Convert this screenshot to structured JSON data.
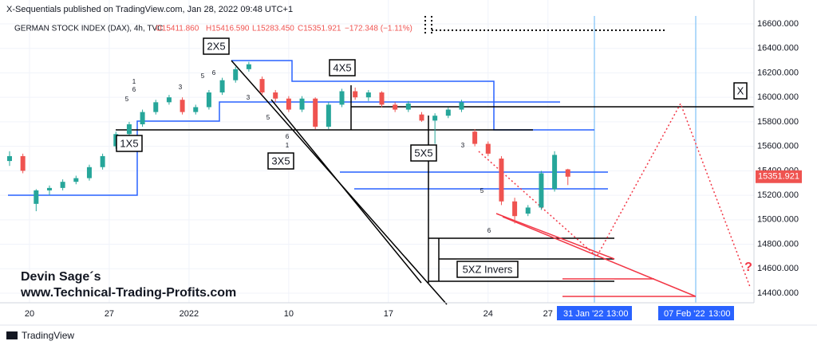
{
  "header": {
    "published": "X-Sequentials published on TradingView.com, Jan 28, 2022 09:48 UTC+1",
    "symbol": "GERMAN STOCK INDEX (DAX), 4h, TVC",
    "open": "O15411.860",
    "high": "H15416.590",
    "low": "L15283.450",
    "close": "C15351.921",
    "change": "−172.348 (−1.11%)"
  },
  "chart_data": {
    "type": "candlestick",
    "x": [
      0,
      2,
      4,
      6,
      8,
      10,
      12,
      14,
      16,
      18,
      20,
      22,
      24,
      26,
      28,
      30,
      32,
      34,
      36,
      38,
      40,
      42,
      44,
      46,
      48,
      50,
      52,
      54,
      56,
      58,
      60,
      62,
      64,
      66,
      68,
      70,
      72,
      74,
      76,
      78,
      80,
      82,
      84
    ],
    "open": [
      15480,
      15520,
      15130,
      15240,
      15260,
      15310,
      15340,
      15430,
      15600,
      15700,
      15780,
      15880,
      15960,
      15980,
      15880,
      15920,
      16040,
      16140,
      16230,
      16150,
      16040,
      15990,
      15900,
      15990,
      15760,
      15940,
      16050,
      16000,
      16040,
      15940,
      15900,
      15860,
      15810,
      15850,
      15900,
      15720,
      15620,
      15500,
      15150,
      15050,
      15100,
      15250,
      15411.86
    ],
    "high": [
      15560,
      15540,
      15250,
      15280,
      15330,
      15360,
      15450,
      15540,
      15720,
      15800,
      15900,
      15980,
      16020,
      16000,
      15940,
      16060,
      16160,
      16250,
      16290,
      16170,
      16060,
      16010,
      16010,
      16000,
      15960,
      16070,
      16080,
      16060,
      16050,
      15960,
      15970,
      15880,
      15870,
      15920,
      15980,
      15740,
      15640,
      15520,
      15180,
      15120,
      15400,
      15560,
      15416.59
    ],
    "low": [
      15440,
      15380,
      15070,
      15200,
      15240,
      15290,
      15320,
      15410,
      15580,
      15680,
      15760,
      15860,
      15940,
      15860,
      15860,
      15900,
      16020,
      16120,
      16210,
      16020,
      15960,
      15880,
      15880,
      15740,
      15740,
      15920,
      15980,
      15970,
      15920,
      15880,
      15880,
      15800,
      15620,
      15830,
      15880,
      15600,
      15520,
      15120,
      14970,
      15030,
      15080,
      15230,
      15283.45
    ],
    "close": [
      15520,
      15400,
      15240,
      15260,
      15310,
      15340,
      15430,
      15520,
      15700,
      15780,
      15880,
      15960,
      16000,
      15880,
      15920,
      16040,
      16140,
      16230,
      16270,
      16040,
      15990,
      15900,
      15990,
      15760,
      15940,
      16050,
      16000,
      16040,
      15940,
      15900,
      15950,
      15810,
      15850,
      15900,
      15960,
      15620,
      15540,
      15150,
      15030,
      15100,
      15380,
      15530,
      15351.921
    ],
    "up_color": "#26a69a",
    "down_color": "#ef5350",
    "xlim": [
      -1.44,
      112
    ],
    "xticks": [
      {
        "value": 3,
        "label": "20"
      },
      {
        "value": 15,
        "label": "27"
      },
      {
        "value": 27,
        "label": "2022"
      },
      {
        "value": 42,
        "label": "10"
      },
      {
        "value": 57,
        "label": "17"
      },
      {
        "value": 72,
        "label": "24"
      },
      {
        "value": 81,
        "label": "27"
      }
    ],
    "ylim": [
      14400,
      16600
    ],
    "yticks": [
      {
        "value": 14400,
        "label": "14400.000"
      },
      {
        "value": 14600,
        "label": "14600.000"
      },
      {
        "value": 14800,
        "label": "14800.000"
      },
      {
        "value": 15000,
        "label": "15000.000"
      },
      {
        "value": 15200,
        "label": "15200.000"
      },
      {
        "value": 15400,
        "label": "15400.000"
      },
      {
        "value": 15600,
        "label": "15600.000"
      },
      {
        "value": 15800,
        "label": "15800.000"
      },
      {
        "value": 16000,
        "label": "16000.000"
      },
      {
        "value": 16200,
        "label": "16200.000"
      },
      {
        "value": 16400,
        "label": "16400.000"
      },
      {
        "value": 16600,
        "label": "16600.000"
      }
    ],
    "grid": true
  },
  "annotations": {
    "labels": [
      "2X5",
      "4X5",
      "1X5",
      "3X5",
      "5X5",
      "5XZ Invers",
      "X",
      "?"
    ],
    "digits": [
      "1",
      "6",
      "5",
      "3",
      "5",
      "6",
      "3",
      "5",
      "6",
      "1",
      "3",
      "5",
      "6"
    ],
    "author": "Devin Sage´s",
    "site": "www.Technical-Trading-Profits.com",
    "dates": [
      "31 Jan '22",
      "13:00",
      "07 Feb '22",
      "13:00"
    ],
    "logo": "TradingView"
  }
}
